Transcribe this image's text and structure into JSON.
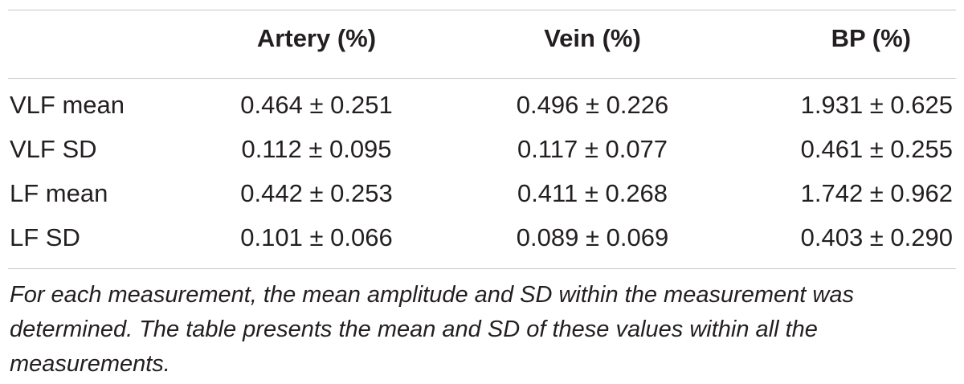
{
  "table": {
    "headers": [
      "",
      "Artery (%)",
      "Vein (%)",
      "BP (%)"
    ],
    "rows": [
      {
        "label": "VLF mean",
        "artery": "0.464 ± 0.251",
        "vein": "0.496 ± 0.226",
        "bp": "1.931 ± 0.625"
      },
      {
        "label": "VLF SD",
        "artery": "0.112 ± 0.095",
        "vein": "0.117 ± 0.077",
        "bp": "0.461 ± 0.255"
      },
      {
        "label": "LF mean",
        "artery": "0.442 ± 0.253",
        "vein": "0.411 ± 0.268",
        "bp": "1.742 ± 0.962"
      },
      {
        "label": "LF SD",
        "artery": "0.101 ± 0.066",
        "vein": "0.089 ± 0.069",
        "bp": "0.403 ± 0.290"
      }
    ],
    "footnote": "For each measurement, the mean amplitude and SD within the measurement was determined. The table presents the mean and SD of these values within all the measurements."
  },
  "colors": {
    "text": "#231f20",
    "rule": "#c8c8c8",
    "background": "#ffffff"
  }
}
